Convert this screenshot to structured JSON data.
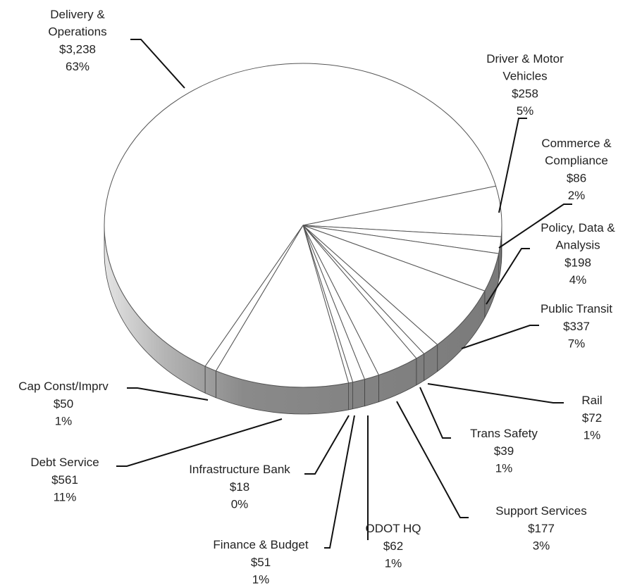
{
  "chart_data": {
    "type": "pie",
    "categories": [
      "Delivery &\nOperations",
      "Driver & Motor\nVehicles",
      "Commerce &\nCompliance",
      "Policy, Data &\nAnalysis",
      "Public Transit",
      "Rail",
      "Trans Safety",
      "Support Services",
      "ODOT  HQ",
      "Finance & Budget",
      "Infrastructure Bank",
      "Debt Service",
      "Cap Const/Imprv"
    ],
    "values": [
      3238,
      258,
      86,
      198,
      337,
      72,
      39,
      177,
      62,
      51,
      18,
      561,
      50
    ],
    "value_labels": [
      "$3,238",
      "$258",
      "$86",
      "$198",
      "$337",
      "$72",
      "$39",
      "$177",
      "$62",
      "$51",
      "$18",
      "$561",
      "$50"
    ],
    "percent_labels": [
      "63%",
      "5%",
      "2%",
      "4%",
      "7%",
      "1%",
      "1%",
      "3%",
      "1%",
      "1%",
      "0%",
      "11%",
      "1%"
    ],
    "color": "#ffffff"
  }
}
